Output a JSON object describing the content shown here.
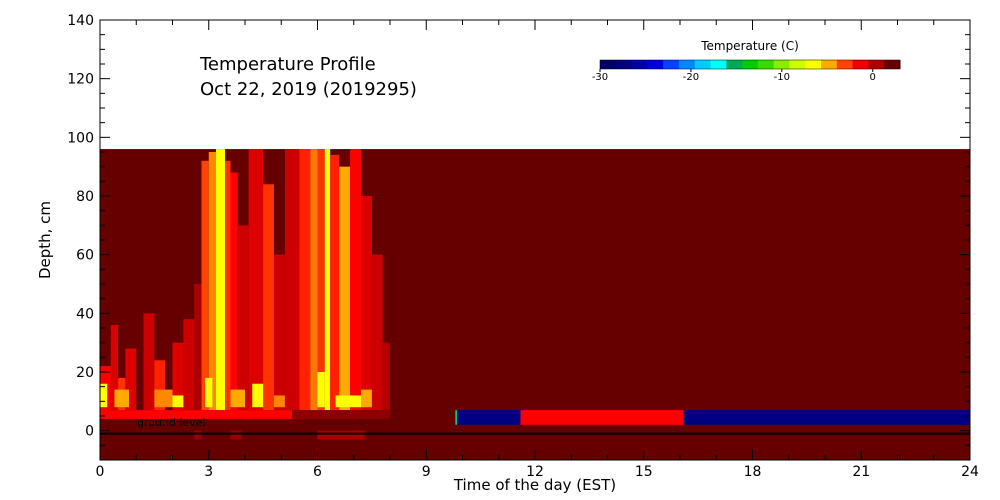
{
  "chart_data": {
    "type": "heatmap",
    "title": "Temperature Profile",
    "subtitle": "Oct 22, 2019 (2019295)",
    "xlabel": "Time of the day (EST)",
    "ylabel": "Depth, cm",
    "xlim": [
      0,
      24
    ],
    "ylim": [
      -10,
      140
    ],
    "x_ticks": [
      0,
      3,
      6,
      9,
      12,
      15,
      18,
      21,
      24
    ],
    "y_ticks": [
      0,
      20,
      40,
      60,
      80,
      100,
      120,
      140
    ],
    "grid": false,
    "annotation": "ground level",
    "colorbar": {
      "title": "Temperature (C)",
      "range": [
        -30,
        3
      ],
      "ticks": [
        -30,
        -20,
        -10,
        0
      ],
      "tick_labels": [
        "-30",
        "-20",
        "-10",
        "0"
      ],
      "colors": [
        "#000066",
        "#000080",
        "#0000a8",
        "#0000d8",
        "#0044ff",
        "#0088ff",
        "#00ccff",
        "#00ffff",
        "#00aa55",
        "#00cc00",
        "#33dd00",
        "#88ee00",
        "#ccff00",
        "#ffff00",
        "#ffaa00",
        "#ff4400",
        "#ee0000",
        "#aa0000",
        "#660000"
      ]
    },
    "background_value_c": 3,
    "background_color": "#660000",
    "regions": [
      {
        "x": [
          0,
          5.3
        ],
        "depth": [
          4,
          7
        ],
        "temp_c": 0,
        "color": "#ff0000"
      },
      {
        "x": [
          5.3,
          8
        ],
        "depth": [
          4,
          7
        ],
        "temp_c": 2,
        "color": "#8b0000"
      },
      {
        "x": [
          9.8,
          9.85
        ],
        "depth": [
          2,
          7
        ],
        "temp_c": -11,
        "color": "#00cc66"
      },
      {
        "x": [
          9.85,
          11.6
        ],
        "depth": [
          2,
          7
        ],
        "temp_c": -30,
        "color": "#000080"
      },
      {
        "x": [
          11.6,
          16.1
        ],
        "depth": [
          2,
          7
        ],
        "temp_c": 0,
        "color": "#ff0000"
      },
      {
        "x": [
          16.1,
          24
        ],
        "depth": [
          2,
          7
        ],
        "temp_c": -30,
        "color": "#000080"
      }
    ],
    "warm_columns": [
      {
        "x": [
          0.0,
          0.3
        ],
        "top": 22,
        "color": "#ff0000"
      },
      {
        "x": [
          0.3,
          0.5
        ],
        "top": 36,
        "color": "#dd0000"
      },
      {
        "x": [
          0.5,
          0.7
        ],
        "top": 18,
        "color": "#ff3300"
      },
      {
        "x": [
          0.7,
          1.0
        ],
        "top": 28,
        "color": "#dd0000"
      },
      {
        "x": [
          1.2,
          1.5
        ],
        "top": 40,
        "color": "#cc0000"
      },
      {
        "x": [
          1.5,
          1.8
        ],
        "top": 24,
        "color": "#ff2200"
      },
      {
        "x": [
          2.0,
          2.3
        ],
        "top": 30,
        "color": "#dd0000"
      },
      {
        "x": [
          2.3,
          2.6
        ],
        "top": 38,
        "color": "#cc0000"
      },
      {
        "x": [
          2.6,
          2.8
        ],
        "top": 50,
        "color": "#aa0000"
      },
      {
        "x": [
          2.8,
          3.0
        ],
        "top": 92,
        "color": "#ff4400"
      },
      {
        "x": [
          3.0,
          3.2
        ],
        "top": 95,
        "color": "#ff8800"
      },
      {
        "x": [
          3.2,
          3.45
        ],
        "top": 96,
        "color": "#ffff00"
      },
      {
        "x": [
          3.45,
          3.6
        ],
        "top": 92,
        "color": "#ff3300"
      },
      {
        "x": [
          3.6,
          3.8
        ],
        "top": 88,
        "color": "#ff0000"
      },
      {
        "x": [
          3.8,
          4.1
        ],
        "top": 70,
        "color": "#cc0000"
      },
      {
        "x": [
          4.1,
          4.5
        ],
        "top": 96,
        "color": "#dd0000"
      },
      {
        "x": [
          4.5,
          4.8
        ],
        "top": 84,
        "color": "#ff3300"
      },
      {
        "x": [
          4.8,
          5.1
        ],
        "top": 60,
        "color": "#cc0000"
      },
      {
        "x": [
          5.1,
          5.5
        ],
        "top": 96,
        "color": "#cc0000"
      },
      {
        "x": [
          5.5,
          5.8
        ],
        "top": 96,
        "color": "#ff2200"
      },
      {
        "x": [
          5.8,
          6.0
        ],
        "top": 96,
        "color": "#ff7700"
      },
      {
        "x": [
          6.0,
          6.2
        ],
        "top": 96,
        "color": "#ff3300"
      },
      {
        "x": [
          6.2,
          6.35
        ],
        "top": 96,
        "color": "#ffff00"
      },
      {
        "x": [
          6.35,
          6.6
        ],
        "top": 94,
        "color": "#ff2200"
      },
      {
        "x": [
          6.6,
          6.9
        ],
        "top": 90,
        "color": "#ffaa00"
      },
      {
        "x": [
          6.9,
          7.2
        ],
        "top": 96,
        "color": "#ff0000"
      },
      {
        "x": [
          7.2,
          7.5
        ],
        "top": 80,
        "color": "#dd0000"
      },
      {
        "x": [
          7.5,
          7.8
        ],
        "top": 60,
        "color": "#cc0000"
      },
      {
        "x": [
          7.8,
          8.0
        ],
        "top": 30,
        "color": "#aa0000"
      }
    ],
    "hot_spots": [
      {
        "x": [
          0.0,
          0.2
        ],
        "depth": [
          8,
          16
        ],
        "color": "#ffff00"
      },
      {
        "x": [
          0.4,
          0.8
        ],
        "depth": [
          8,
          14
        ],
        "color": "#ffaa00"
      },
      {
        "x": [
          1.5,
          2.0
        ],
        "depth": [
          8,
          14
        ],
        "color": "#ff8800"
      },
      {
        "x": [
          2.0,
          2.3
        ],
        "depth": [
          8,
          12
        ],
        "color": "#ffff00"
      },
      {
        "x": [
          2.9,
          3.1
        ],
        "depth": [
          8,
          18
        ],
        "color": "#ffff00"
      },
      {
        "x": [
          3.6,
          4.0
        ],
        "depth": [
          8,
          14
        ],
        "color": "#ffaa00"
      },
      {
        "x": [
          4.2,
          4.5
        ],
        "depth": [
          8,
          16
        ],
        "color": "#ffff00"
      },
      {
        "x": [
          4.8,
          5.1
        ],
        "depth": [
          8,
          12
        ],
        "color": "#ff8800"
      },
      {
        "x": [
          6.0,
          6.2
        ],
        "depth": [
          8,
          20
        ],
        "color": "#ffff00"
      },
      {
        "x": [
          6.5,
          7.2
        ],
        "depth": [
          8,
          12
        ],
        "color": "#ffff00"
      },
      {
        "x": [
          7.2,
          7.5
        ],
        "depth": [
          8,
          14
        ],
        "color": "#ffaa00"
      }
    ],
    "below_ground": [
      {
        "x": [
          2.6,
          2.8
        ],
        "depth": [
          -3,
          0
        ],
        "color": "#990000"
      },
      {
        "x": [
          3.6,
          3.9
        ],
        "depth": [
          -3,
          0
        ],
        "color": "#990000"
      },
      {
        "x": [
          6.0,
          7.3
        ],
        "depth": [
          -3,
          0
        ],
        "color": "#aa0000"
      }
    ]
  }
}
